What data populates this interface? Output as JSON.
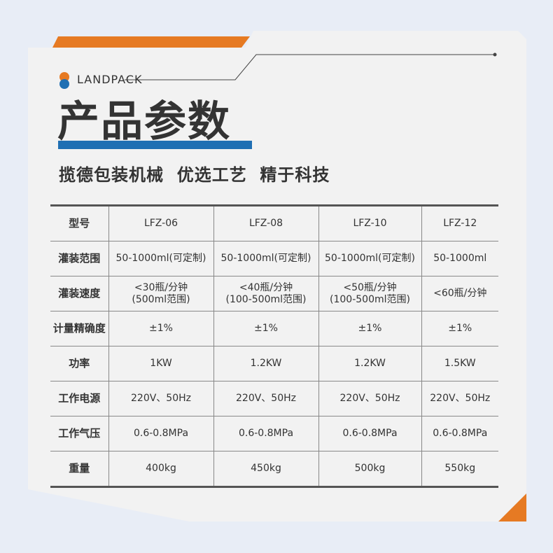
{
  "brand": "LANDPACK",
  "title": "产品参数",
  "slogan": "揽德包装机械  优选工艺  精于科技",
  "colors": {
    "accent_orange": "#e67a23",
    "accent_blue": "#1f6fb3",
    "background": "#e8edf6",
    "card": "#f2f2f2"
  },
  "table": {
    "header": {
      "label": "型号",
      "models": [
        "LFZ-06",
        "LFZ-08",
        "LFZ-10",
        "LFZ-12"
      ]
    },
    "rows": [
      {
        "label": "灌装范围",
        "values": [
          "50-1000ml(可定制)",
          "50-1000ml(可定制)",
          "50-1000ml(可定制)",
          "50-1000ml"
        ]
      },
      {
        "label": "灌装速度",
        "values": [
          "<30瓶/分钟\n(500ml范围)",
          "<40瓶/分钟\n(100-500ml范围)",
          "<50瓶/分钟\n(100-500ml范围)",
          "<60瓶/分钟"
        ]
      },
      {
        "label": "计量精确度",
        "values": [
          "±1%",
          "±1%",
          "±1%",
          "±1%"
        ]
      },
      {
        "label": "功率",
        "values": [
          "1KW",
          "1.2KW",
          "1.2KW",
          "1.5KW"
        ]
      },
      {
        "label": "工作电源",
        "values": [
          "220V、50Hz",
          "220V、50Hz",
          "220V、50Hz",
          "220V、50Hz"
        ]
      },
      {
        "label": "工作气压",
        "values": [
          "0.6-0.8MPa",
          "0.6-0.8MPa",
          "0.6-0.8MPa",
          "0.6-0.8MPa"
        ]
      },
      {
        "label": "重量",
        "values": [
          "400kg",
          "450kg",
          "500kg",
          "550kg"
        ]
      }
    ]
  }
}
